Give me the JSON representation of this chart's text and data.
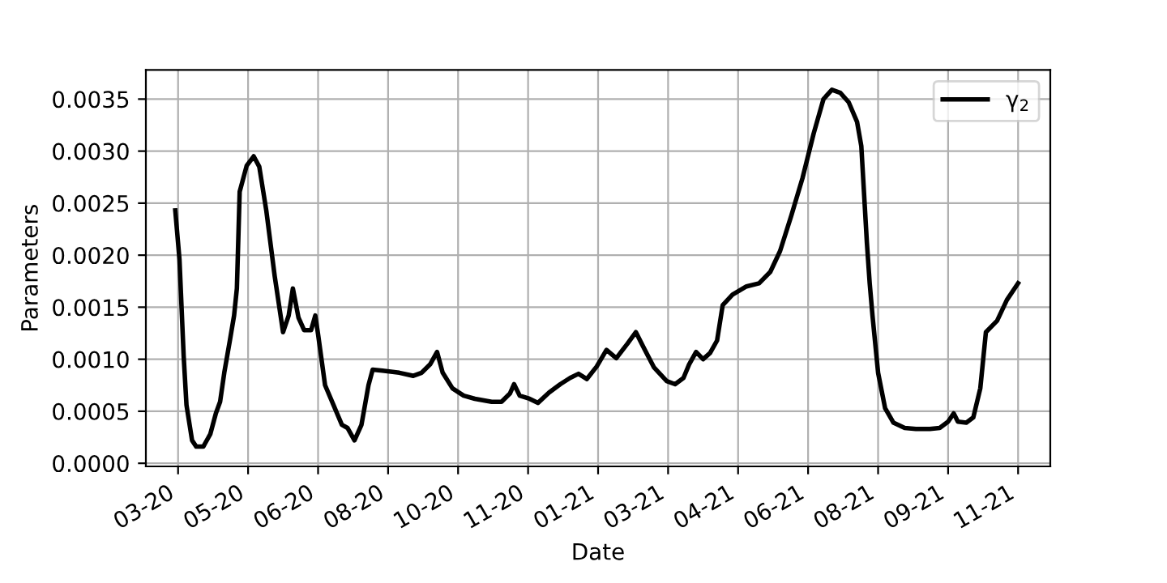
{
  "chart_data": {
    "type": "line",
    "xlabel": "Date",
    "ylabel": "Parameters",
    "grid": true,
    "legend": "top right",
    "xlim": [
      "2020-02-26",
      "2021-12-03"
    ],
    "ylim": [
      -3e-05,
      0.00378
    ],
    "xticks": [
      {
        "value": "2020-03-20",
        "label": "03-20"
      },
      {
        "value": "2020-05-09",
        "label": "05-20"
      },
      {
        "value": "2020-06-28",
        "label": "06-20"
      },
      {
        "value": "2020-08-17",
        "label": "08-20"
      },
      {
        "value": "2020-10-06",
        "label": "10-20"
      },
      {
        "value": "2020-11-25",
        "label": "11-20"
      },
      {
        "value": "2021-01-14",
        "label": "01-21"
      },
      {
        "value": "2021-03-05",
        "label": "03-21"
      },
      {
        "value": "2021-04-24",
        "label": "04-21"
      },
      {
        "value": "2021-06-13",
        "label": "06-21"
      },
      {
        "value": "2021-08-02",
        "label": "08-21"
      },
      {
        "value": "2021-09-21",
        "label": "09-21"
      },
      {
        "value": "2021-11-10",
        "label": "11-21"
      }
    ],
    "yticks": [
      {
        "value": 0,
        "label": "0.0000"
      },
      {
        "value": 0.0005,
        "label": "0.0005"
      },
      {
        "value": 0.001,
        "label": "0.0010"
      },
      {
        "value": 0.0015,
        "label": "0.0015"
      },
      {
        "value": 0.002,
        "label": "0.0020"
      },
      {
        "value": 0.0025,
        "label": "0.0025"
      },
      {
        "value": 0.003,
        "label": "0.0030"
      },
      {
        "value": 0.0035,
        "label": "0.0035"
      }
    ],
    "x": [
      "2020-03-18",
      "2020-03-21",
      "2020-03-24",
      "2020-03-26",
      "2020-03-30",
      "2020-04-02",
      "2020-04-07",
      "2020-04-12",
      "2020-04-16",
      "2020-04-19",
      "2020-04-22",
      "2020-04-26",
      "2020-04-29",
      "2020-05-01",
      "2020-05-03",
      "2020-05-08",
      "2020-05-13",
      "2020-05-17",
      "2020-05-22",
      "2020-05-28",
      "2020-06-03",
      "2020-06-07",
      "2020-06-10",
      "2020-06-14",
      "2020-06-18",
      "2020-06-23",
      "2020-06-26",
      "2020-06-28",
      "2020-07-03",
      "2020-07-09",
      "2020-07-15",
      "2020-07-19",
      "2020-07-24",
      "2020-07-29",
      "2020-08-03",
      "2020-08-06",
      "2020-08-13",
      "2020-08-25",
      "2020-09-04",
      "2020-09-10",
      "2020-09-16",
      "2020-09-21",
      "2020-09-25",
      "2020-10-02",
      "2020-10-10",
      "2020-10-18",
      "2020-10-30",
      "2020-11-06",
      "2020-11-12",
      "2020-11-15",
      "2020-11-19",
      "2020-11-26",
      "2020-12-02",
      "2020-12-10",
      "2020-12-18",
      "2020-12-25",
      "2020-12-31",
      "2021-01-06",
      "2021-01-13",
      "2021-01-20",
      "2021-01-27",
      "2021-02-04",
      "2021-02-10",
      "2021-02-16",
      "2021-02-23",
      "2021-03-04",
      "2021-03-10",
      "2021-03-16",
      "2021-03-20",
      "2021-03-25",
      "2021-03-30",
      "2021-04-04",
      "2021-04-09",
      "2021-04-13",
      "2021-04-20",
      "2021-04-30",
      "2021-05-09",
      "2021-05-17",
      "2021-05-24",
      "2021-06-01",
      "2021-06-09",
      "2021-06-17",
      "2021-06-24",
      "2021-06-30",
      "2021-07-06",
      "2021-07-12",
      "2021-07-18",
      "2021-07-21",
      "2021-07-25",
      "2021-07-27",
      "2021-07-29",
      "2021-08-02",
      "2021-08-07",
      "2021-08-13",
      "2021-08-21",
      "2021-08-29",
      "2021-09-08",
      "2021-09-15",
      "2021-09-21",
      "2021-09-25",
      "2021-09-28",
      "2021-10-04",
      "2021-10-09",
      "2021-10-14",
      "2021-10-18",
      "2021-10-26",
      "2021-11-02",
      "2021-11-10"
    ],
    "series": [
      {
        "name": "γ$_{2}$",
        "color": "#000000",
        "values": [
          0.00243,
          0.00196,
          0.00103,
          0.00056,
          0.00022,
          0.00016,
          0.00016,
          0.00028,
          0.00048,
          0.00059,
          0.00087,
          0.00118,
          0.00142,
          0.00168,
          0.00261,
          0.00286,
          0.00295,
          0.00285,
          0.00243,
          0.0018,
          0.00126,
          0.00142,
          0.00168,
          0.0014,
          0.00128,
          0.00128,
          0.00142,
          0.00124,
          0.00075,
          0.00056,
          0.00037,
          0.00034,
          0.00022,
          0.00037,
          0.00075,
          0.0009,
          0.00089,
          0.00087,
          0.00084,
          0.00087,
          0.00095,
          0.00107,
          0.00087,
          0.00072,
          0.00065,
          0.00062,
          0.00059,
          0.00059,
          0.00067,
          0.00076,
          0.00065,
          0.00062,
          0.00058,
          0.00068,
          0.00076,
          0.00082,
          0.00086,
          0.00081,
          0.00093,
          0.00109,
          0.00101,
          0.00115,
          0.00126,
          0.0011,
          0.00092,
          0.00079,
          0.00076,
          0.00082,
          0.00095,
          0.00107,
          0.001,
          0.00106,
          0.00118,
          0.00152,
          0.00162,
          0.0017,
          0.00173,
          0.00184,
          0.00204,
          0.00238,
          0.00274,
          0.00317,
          0.0035,
          0.00359,
          0.00356,
          0.00347,
          0.00328,
          0.00305,
          0.00212,
          0.00173,
          0.00142,
          0.00087,
          0.00053,
          0.00039,
          0.00034,
          0.00033,
          0.00033,
          0.00034,
          0.0004,
          0.00048,
          0.0004,
          0.00039,
          0.00044,
          0.00072,
          0.00126,
          0.00137,
          0.00157,
          0.00173
        ]
      }
    ]
  }
}
